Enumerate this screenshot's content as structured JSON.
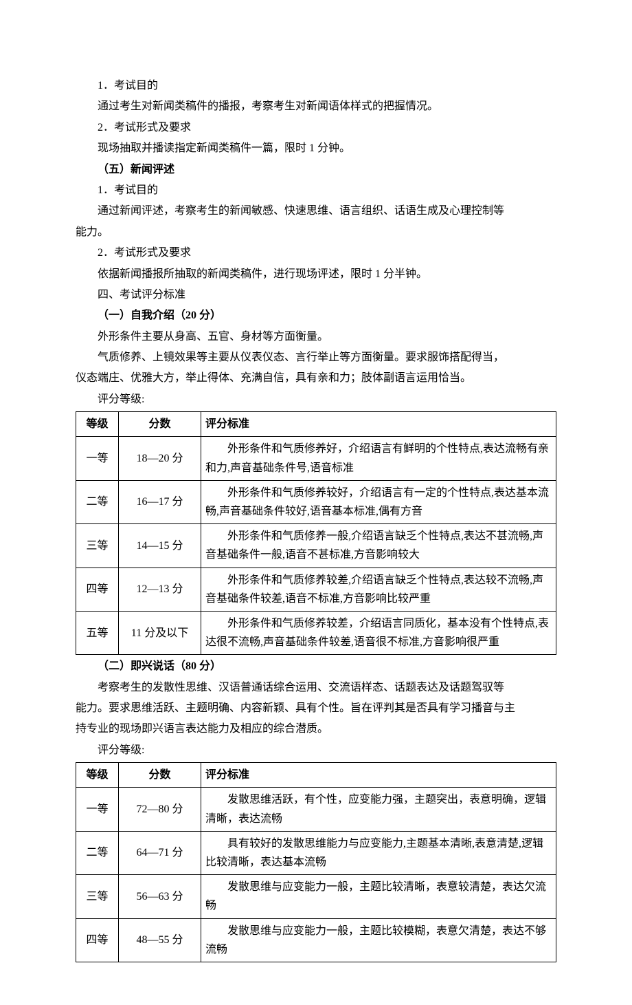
{
  "doc": {
    "lines": [
      "1．考试目的",
      "通过考生对新闻类稿件的播报，考察考生对新闻语体样式的把握情况。",
      "2．考试形式及要求",
      "现场抽取并播读指定新闻类稿件一篇，限时 1 分钟。"
    ],
    "section5_title": "（五）新闻评述",
    "section5_lines": [
      "1．考试目的",
      "通过新闻评述，考察考生的新闻敏感、快速思维、语言组织、话语生成及心理控制等"
    ],
    "section5_tail": "能力。",
    "section5_lines2": [
      "2．考试形式及要求",
      "依据新闻播报所抽取的新闻类稿件，进行现场评述，限时 1 分半钟。",
      "四、考试评分标准"
    ],
    "sectionA_title": "（一）自我介绍（20 分）",
    "sectionA_lines": [
      "外形条件主要从身高、五官、身材等方面衡量。",
      "气质修养、上镜效果等主要从仪表仪态、言行举止等方面衡量。要求服饰搭配得当，"
    ],
    "sectionA_tail": "仪态端庄、优雅大方，举止得体、充满自信，具有亲和力；肢体副语言运用恰当。",
    "grade_label": "评分等级:",
    "table1": {
      "headers": [
        "等级",
        "分数",
        "评分标准"
      ],
      "rows": [
        {
          "grade": "一等",
          "score": "18—20 分",
          "criteria": "外形条件和气质修养好，介绍语言有鲜明的个性特点,表达流畅有亲和力,声音基础条件号,语音标准"
        },
        {
          "grade": "二等",
          "score": "16—17 分",
          "criteria": "外形条件和气质修养较好，介绍语言有一定的个性特点,表达基本流畅,声音基础条件较好,语音基本标准,偶有方音"
        },
        {
          "grade": "三等",
          "score": "14—15 分",
          "criteria": "外形条件和气质修养一般,介绍语言缺乏个性特点,表达不甚流畅,声音基础条件一般,语音不甚标准,方音影响较大"
        },
        {
          "grade": "四等",
          "score": "12—13 分",
          "criteria": "外形条件和气质修养较差,介绍语言缺乏个性特点,表达较不流畅,声音基础条件较差,语音不标准,方音影响比较严重"
        },
        {
          "grade": "五等",
          "score": "11 分及以下",
          "criteria": "外形条件和气质修养较差，介绍语言同质化，基本没有个性特点,表达很不流畅,声音基础条件较差,语音很不标准,方音影响很严重"
        }
      ]
    },
    "sectionB_title": "（二）即兴说话（80 分）",
    "sectionB_lines": [
      "考察考生的发散性思维、汉语普通话综合运用、交流语样态、话题表达及话题驾驭等"
    ],
    "sectionB_tail1": "能力。要求思维活跃、主题明确、内容新颖、具有个性。旨在评判其是否具有学习播音与主",
    "sectionB_tail2": "持专业的现场即兴语言表达能力及相应的综合潜质。",
    "table2": {
      "headers": [
        "等级",
        "分数",
        "评分标准"
      ],
      "rows": [
        {
          "grade": "一等",
          "score": "72—80 分",
          "criteria": "发散思维活跃，有个性，应变能力强，主题突出，表意明确，逻辑清晰，表达流畅"
        },
        {
          "grade": "二等",
          "score": "64—71 分",
          "criteria": "具有较好的发散思维能力与应变能力,主题基本清晰,表意清楚,逻辑比较清晰，表达基本流畅"
        },
        {
          "grade": "三等",
          "score": "56—63 分",
          "criteria": "发散思维与应变能力一般，主题比较清晰，表意较清楚，表达欠流畅"
        },
        {
          "grade": "四等",
          "score": "48—55 分",
          "criteria": "发散思维与应变能力一般，主题比较模糊，表意欠清楚，表达不够流畅"
        }
      ]
    }
  }
}
